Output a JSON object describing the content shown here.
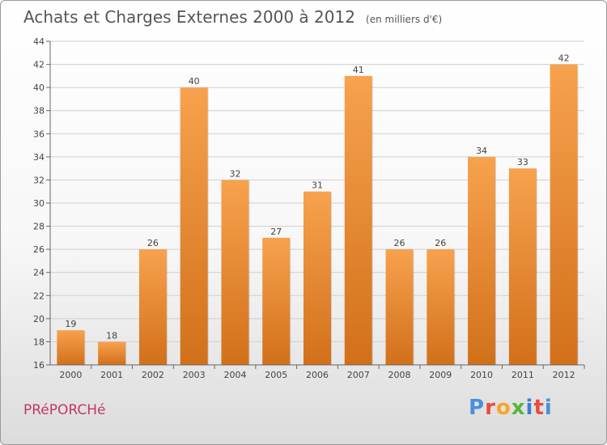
{
  "header": {
    "title": "Achats et Charges Externes 2000 à 2012",
    "unit": "(en milliers d'€)"
  },
  "footer": {
    "commune": "PRéPORCHé",
    "logo_text": "Proxiti",
    "logo_colors": [
      "#4a90d9",
      "#e94b3c",
      "#f5a623",
      "#5bb33b",
      "#3a7fd0",
      "#e94b3c",
      "#4a90d9"
    ]
  },
  "colors": {
    "bar_top": "#f7a24e",
    "bar_bottom": "#d2701a",
    "grid": "#cfcfcf",
    "axis": "#666666"
  },
  "chart_data": {
    "type": "bar",
    "title": "Achats et Charges Externes 2000 à 2012",
    "subtitle": "(en milliers d'€)",
    "categories": [
      "2000",
      "2001",
      "2002",
      "2003",
      "2004",
      "2005",
      "2006",
      "2007",
      "2008",
      "2009",
      "2010",
      "2011",
      "2012"
    ],
    "values": [
      19,
      18,
      26,
      40,
      32,
      27,
      31,
      41,
      26,
      26,
      34,
      33,
      42
    ],
    "ylim": [
      16,
      44
    ],
    "yticks": [
      16,
      18,
      20,
      22,
      24,
      26,
      28,
      30,
      32,
      34,
      36,
      38,
      40,
      42,
      44
    ],
    "grid": true,
    "xlabel": "",
    "ylabel": ""
  }
}
